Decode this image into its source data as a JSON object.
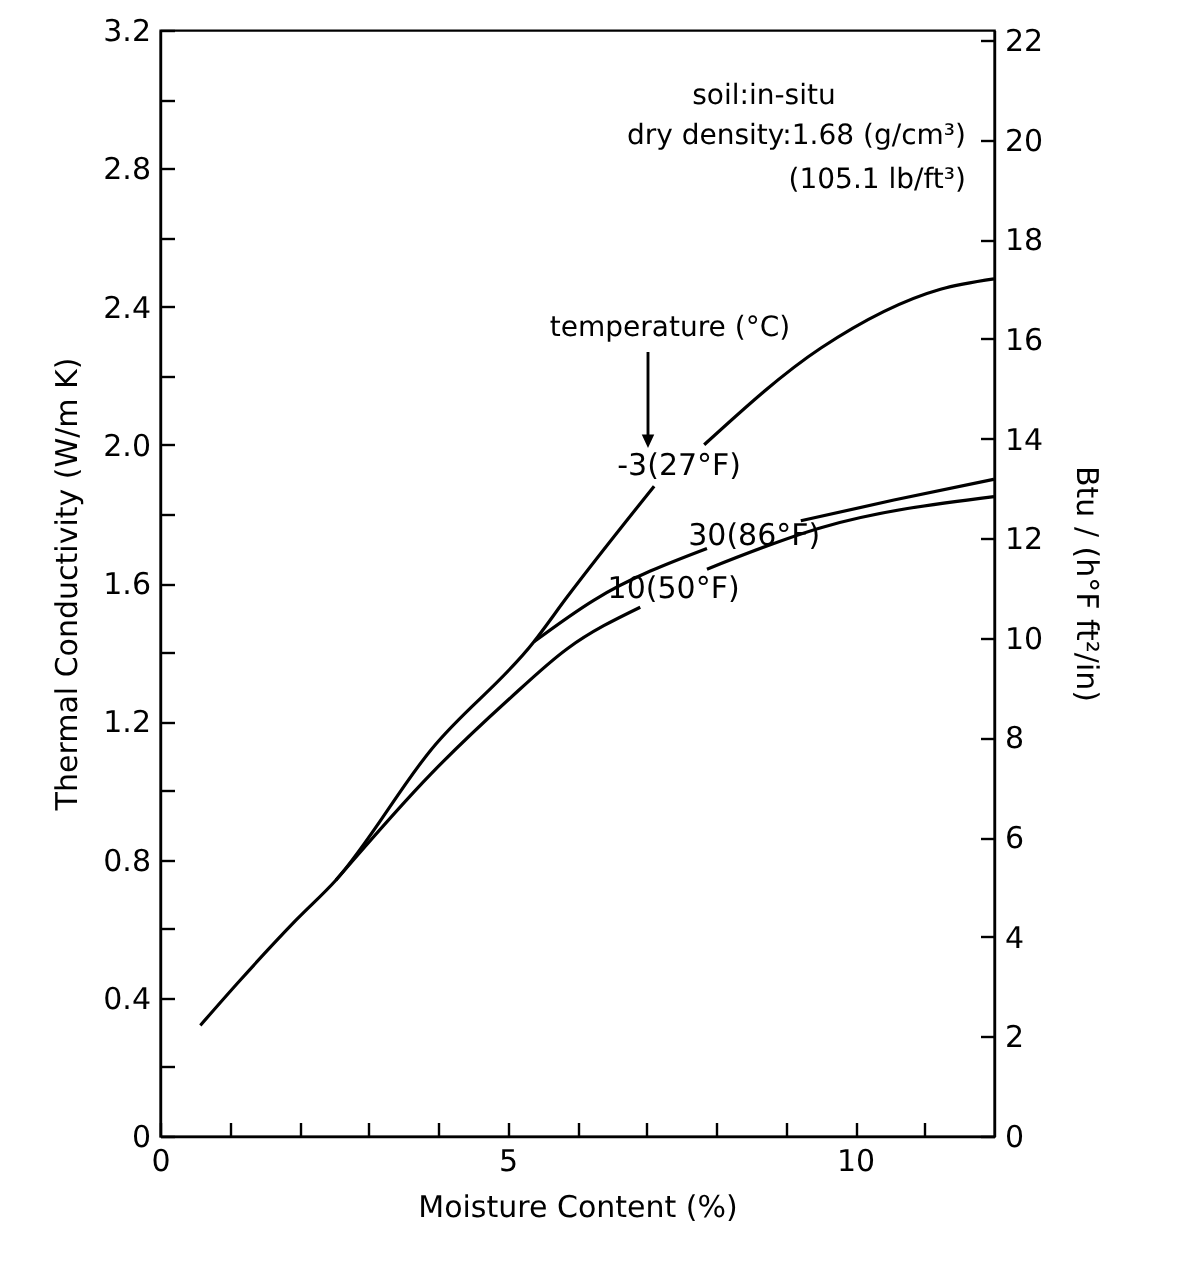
{
  "chart_data": {
    "type": "line",
    "xlabel": "Moisture Content (%)",
    "ylabel": "Thermal Conductivity (W/m K)",
    "y2label": "Btu / (h°F ft²/in)",
    "annotations": [
      "soil:in-situ",
      "dry density:1.68 (g/cm³)",
      "(105.1 lb/ft³)",
      "temperature (°C)"
    ],
    "xlim": [
      0,
      12
    ],
    "xticks": [
      0,
      {
        "value": 1,
        "label": null
      },
      {
        "value": 2,
        "label": null
      },
      {
        "value": 3,
        "label": null
      },
      {
        "value": 4,
        "label": null
      },
      5,
      {
        "value": 6,
        "label": null
      },
      {
        "value": 7,
        "label": null
      },
      {
        "value": 8,
        "label": null
      },
      {
        "value": 9,
        "label": null
      },
      10,
      {
        "value": 11,
        "label": null
      }
    ],
    "ylim": [
      0,
      3.2
    ],
    "yticks": [
      0,
      {
        "value": 0.2,
        "label": null
      },
      0.4,
      {
        "value": 0.6,
        "label": null
      },
      0.8,
      {
        "value": 1.0,
        "label": null
      },
      1.2,
      {
        "value": 1.4,
        "label": null
      },
      1.6,
      {
        "value": 1.8,
        "label": null
      },
      {
        "value": 2,
        "label": "2.0"
      },
      {
        "value": 2.2,
        "label": null
      },
      2.4,
      {
        "value": 2.6,
        "label": null
      },
      2.8,
      {
        "value": 3.0,
        "label": null
      },
      3.2
    ],
    "y2lim": [
      0,
      22.2
    ],
    "y2ticks": [
      0,
      2,
      4,
      6,
      8,
      10,
      12,
      14,
      16,
      18,
      20,
      22
    ],
    "grid": false,
    "series": [
      {
        "name": "-3(27°F)",
        "color": "#000000",
        "x": [
          0.58,
          1.15,
          1.96,
          2.53,
          3.91,
          5.38,
          5.86,
          7.11,
          7.47,
          7.83,
          9.51,
          11.23,
          12.0
        ],
        "values": [
          0.32,
          0.45,
          0.625,
          0.74,
          1.12,
          1.43,
          1.56,
          1.88,
          null,
          2.0,
          2.28,
          2.45,
          2.48
        ]
      },
      {
        "name": "30(86°F)",
        "color": "#000000",
        "x": [
          5.38,
          6.24,
          7.87,
          8.55,
          9.22,
          10.56,
          12.0
        ],
        "values": [
          1.43,
          1.55,
          1.7,
          null,
          1.78,
          1.84,
          1.9
        ]
      },
      {
        "name": "10(50°F)",
        "color": "#000000",
        "x": [
          2.53,
          3.91,
          5.0,
          5.86,
          6.91,
          7.39,
          7.87,
          9.51,
          12.0
        ],
        "values": [
          0.74,
          1.05,
          1.26,
          1.41,
          1.53,
          null,
          1.64,
          1.76,
          1.85
        ]
      }
    ]
  }
}
